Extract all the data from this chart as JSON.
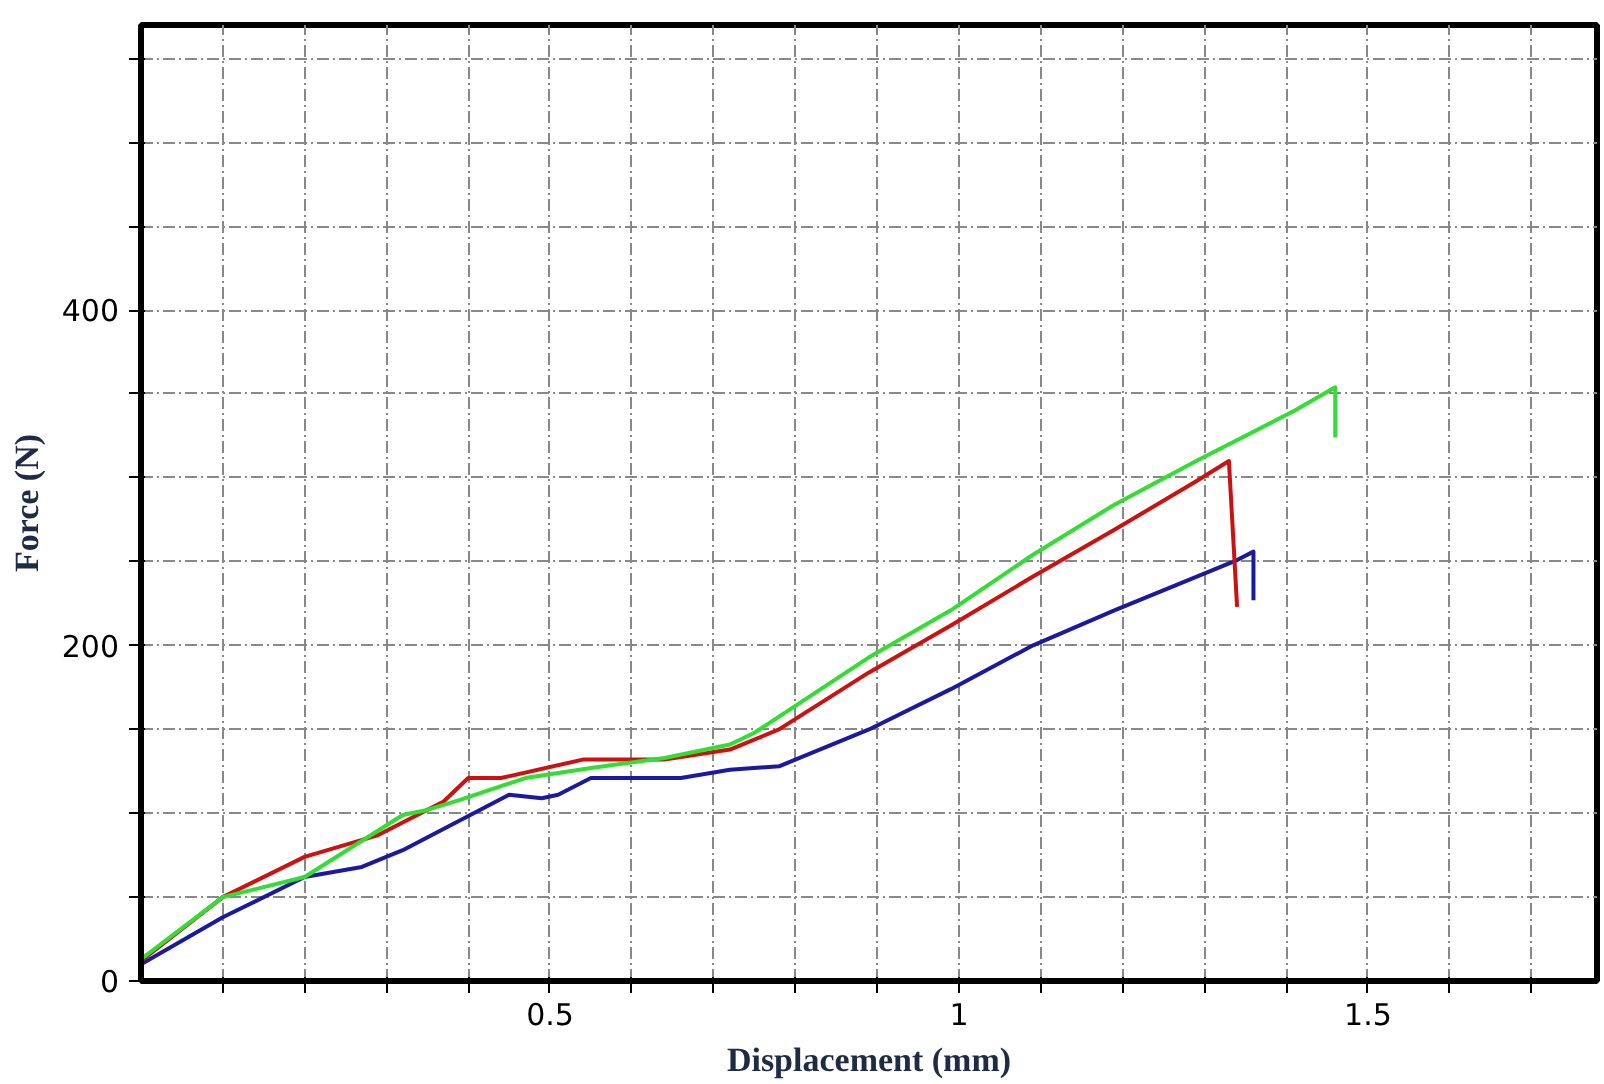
{
  "chart_data": {
    "type": "line",
    "xlabel": "Displacement (mm)",
    "ylabel": "Force (N)",
    "xlim": [
      0,
      1.78
    ],
    "ylim": [
      0,
      570
    ],
    "xticks": [
      {
        "value": 0.1,
        "label": null
      },
      {
        "value": 0.2,
        "label": null
      },
      {
        "value": 0.3,
        "label": null
      },
      {
        "value": 0.4,
        "label": null
      },
      0.5,
      {
        "value": 0.6,
        "label": null
      },
      {
        "value": 0.7,
        "label": null
      },
      {
        "value": 0.8,
        "label": null
      },
      {
        "value": 0.9,
        "label": null
      },
      1,
      {
        "value": 1.1,
        "label": null
      },
      {
        "value": 1.2,
        "label": null
      },
      {
        "value": 1.3,
        "label": null
      },
      {
        "value": 1.4,
        "label": null
      },
      1.5,
      {
        "value": 1.6,
        "label": null
      },
      {
        "value": 1.7,
        "label": null
      }
    ],
    "yticks": [
      0,
      {
        "value": 50,
        "label": null
      },
      {
        "value": 100,
        "label": null
      },
      {
        "value": 150,
        "label": null
      },
      200,
      {
        "value": 250,
        "label": null
      },
      {
        "value": 300,
        "label": null
      },
      {
        "value": 350,
        "label": null
      },
      400,
      {
        "value": 450,
        "label": null
      },
      {
        "value": 500,
        "label": null
      },
      {
        "value": 550,
        "label": null
      }
    ],
    "grid": true,
    "line_style": "solid",
    "marker": "none",
    "series": [
      {
        "color": "#1a1aa0",
        "x": [
          0.0,
          0.1,
          0.2,
          0.27,
          0.32,
          0.45,
          0.49,
          0.51,
          0.55,
          0.66,
          0.72,
          0.78,
          0.89,
          0.99,
          1.09,
          1.19,
          1.29,
          1.34,
          1.36,
          1.36
        ],
        "values": [
          10,
          38,
          62,
          68,
          78,
          111,
          109,
          111,
          121,
          121,
          126,
          128,
          150,
          174,
          200,
          221,
          241,
          251,
          256,
          227
        ]
      },
      {
        "color": "#cc1111",
        "x": [
          0.0,
          0.1,
          0.2,
          0.29,
          0.37,
          0.4,
          0.44,
          0.54,
          0.64,
          0.72,
          0.78,
          0.89,
          0.99,
          1.09,
          1.19,
          1.29,
          1.33,
          1.34
        ],
        "values": [
          12,
          50,
          74,
          87,
          107,
          121,
          121,
          132,
          132,
          138,
          150,
          184,
          212,
          241,
          269,
          298,
          310,
          223
        ]
      },
      {
        "color": "#33dd33",
        "x": [
          0.0,
          0.1,
          0.2,
          0.32,
          0.35,
          0.39,
          0.47,
          0.55,
          0.64,
          0.72,
          0.75,
          0.89,
          0.99,
          1.09,
          1.19,
          1.29,
          1.41,
          1.46,
          1.46
        ],
        "values": [
          13,
          50,
          62,
          99,
          102,
          108,
          121,
          127,
          133,
          141,
          148,
          193,
          221,
          254,
          284,
          310,
          340,
          354,
          324
        ]
      }
    ]
  }
}
